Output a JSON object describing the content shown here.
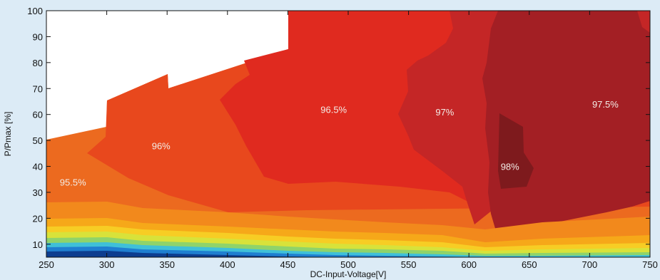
{
  "chart_data": {
    "type": "heatmap",
    "title": "",
    "xlabel": "DC-Input-Voltage[V]",
    "ylabel": "P/Pmax [%]",
    "xlim": [
      250,
      750
    ],
    "ylim": [
      5,
      100
    ],
    "xticks": [
      "250",
      "300",
      "350",
      "400",
      "450",
      "500",
      "550",
      "600",
      "650",
      "700",
      "750"
    ],
    "yticks": [
      "10",
      "20",
      "30",
      "40",
      "50",
      "60",
      "70",
      "80",
      "90",
      "100"
    ],
    "grid": false,
    "colors": {
      "background": "#dcebf6",
      "band_98": "#7e1a1d",
      "band_97_5": "#a31f24",
      "band_97": "#c42626",
      "band_96_5": "#e02a1f",
      "band_96": "#e8481d",
      "band_95_5": "#ec6a1f",
      "low_orange": "#f2891c",
      "low_amber": "#f6a819",
      "low_yellow": "#f7cd24",
      "low_lime": "#d8e23a",
      "low_green": "#8fd36a",
      "low_cyan": "#3fc0d8",
      "low_blue": "#1f7fd0",
      "low_navy": "#0d3d8f"
    },
    "contour_labels": [
      {
        "text": "95.5%",
        "x": 272,
        "y": 34
      },
      {
        "text": "96%",
        "x": 345,
        "y": 48
      },
      {
        "text": "96.5%",
        "x": 488,
        "y": 62
      },
      {
        "text": "97%",
        "x": 580,
        "y": 61
      },
      {
        "text": "97.5%",
        "x": 713,
        "y": 64
      },
      {
        "text": "98%",
        "x": 634,
        "y": 40
      }
    ]
  }
}
